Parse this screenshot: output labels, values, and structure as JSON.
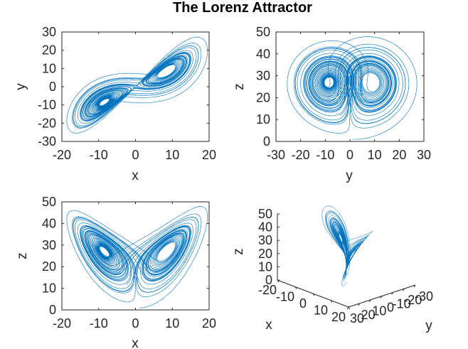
{
  "figure": {
    "title": "The Lorenz Attractor"
  },
  "colors": {
    "trajectory": "#0072bd",
    "axes": "#262626",
    "background": "#ffffff"
  },
  "chart_data": [
    {
      "type": "line",
      "projection": [
        "x",
        "y"
      ],
      "xlabel": "x",
      "ylabel": "y",
      "xlim": [
        -20,
        20
      ],
      "ylim": [
        -30,
        30
      ],
      "xticks": [
        -20,
        -10,
        0,
        10,
        20
      ],
      "yticks": [
        -30,
        -20,
        -10,
        0,
        10,
        20,
        30
      ],
      "xtick_labels": [
        "-20",
        "-10",
        "0",
        "10",
        "20"
      ],
      "ytick_labels": [
        "-30",
        "-20",
        "-10",
        "0",
        "10",
        "20",
        "30"
      ],
      "grid": false
    },
    {
      "type": "line",
      "projection": [
        "y",
        "z"
      ],
      "xlabel": "y",
      "ylabel": "z",
      "xlim": [
        -30,
        30
      ],
      "ylim": [
        0,
        50
      ],
      "xticks": [
        -30,
        -20,
        -10,
        0,
        10,
        20,
        30
      ],
      "yticks": [
        0,
        10,
        20,
        30,
        40,
        50
      ],
      "xtick_labels": [
        "-30",
        "-20",
        "-10",
        "0",
        "10",
        "20",
        "30"
      ],
      "ytick_labels": [
        "0",
        "10",
        "20",
        "30",
        "40",
        "50"
      ],
      "grid": false
    },
    {
      "type": "line",
      "projection": [
        "x",
        "z"
      ],
      "xlabel": "x",
      "ylabel": "z",
      "xlim": [
        -20,
        20
      ],
      "ylim": [
        0,
        50
      ],
      "xticks": [
        -20,
        -10,
        0,
        10,
        20
      ],
      "yticks": [
        0,
        10,
        20,
        30,
        40,
        50
      ],
      "xtick_labels": [
        "-20",
        "-10",
        "0",
        "10",
        "20"
      ],
      "ytick_labels": [
        "0",
        "10",
        "20",
        "30",
        "40",
        "50"
      ],
      "grid": false
    },
    {
      "type": "line3d",
      "projection": [
        "x",
        "y",
        "z"
      ],
      "xlabel": "x",
      "ylabel": "y",
      "zlabel": "z",
      "xlim": [
        -20,
        20
      ],
      "ylim": [
        -30,
        30
      ],
      "zlim": [
        0,
        50
      ],
      "xtick_labels": [
        "20",
        "10",
        "0",
        "-10",
        "-20"
      ],
      "ytick_labels": [
        "30",
        "20",
        "10",
        "0",
        "-10",
        "-20",
        "-30"
      ],
      "ztick_labels": [
        "0",
        "10",
        "20",
        "30",
        "40",
        "50"
      ],
      "grid": false
    }
  ]
}
